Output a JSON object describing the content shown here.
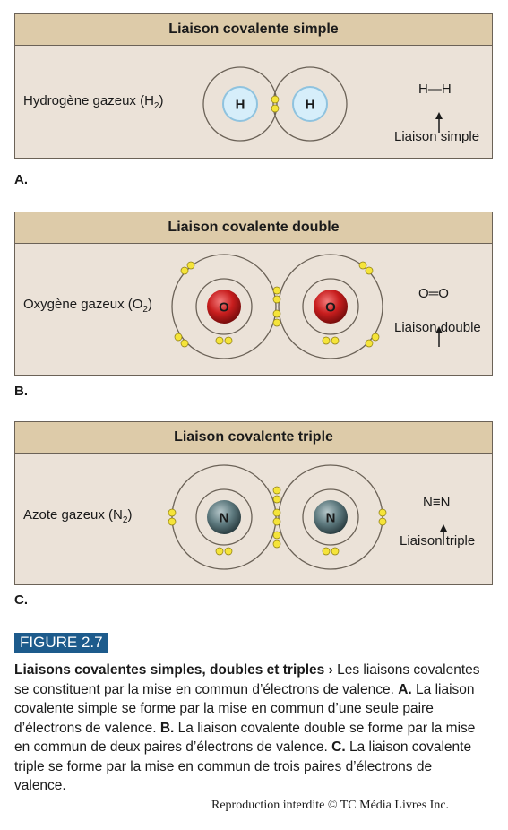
{
  "panels": [
    {
      "letter": "A.",
      "title": "Liaison covalente simple",
      "gas_prefix": "Hydrogène gazeux (H",
      "gas_sub": "2",
      "gas_suffix": ")",
      "atom_symbol": "H",
      "formula": "H—H",
      "bond_label": "Liaison simple",
      "atom_color": "#d6eefa"
    },
    {
      "letter": "B.",
      "title": "Liaison covalente double",
      "gas_prefix": "Oxygène gazeux (O",
      "gas_sub": "2",
      "gas_suffix": ")",
      "atom_symbol": "O",
      "formula": "O═O",
      "bond_label": "Liaison double",
      "atom_color": "#c81e1e"
    },
    {
      "letter": "C.",
      "title": "Liaison covalente triple",
      "gas_prefix": "Azote gazeux (N",
      "gas_sub": "2",
      "gas_suffix": ")",
      "atom_symbol": "N",
      "formula": "N≡N",
      "bond_label": "Liaison triple",
      "atom_color": "#4c6a70"
    }
  ],
  "figure": {
    "tag": "FIGURE 2.7",
    "caption_title": "Liaisons covalentes simples, doubles et triples",
    "caption_arrow": "›",
    "caption_intro": "Les liaisons covalentes se constituent par la mise en commun d’électrons de valence.",
    "a_label": "A.",
    "a_text": "La liaison covalente simple se forme par la mise en commun d’une seule paire d’électrons de valence.",
    "b_label": "B.",
    "b_text": "La liaison covalente double se forme par la mise en commun de deux paires d’électrons de valence.",
    "c_label": "C.",
    "c_text": "La liaison covalente triple se forme par la mise en commun de trois paires d’électrons de valence."
  },
  "copyright": "Reproduction interdite © TC Média Livres Inc.",
  "colors": {
    "panel_bg": "#ebe2d8",
    "panel_header": "#ddcba9",
    "electron": "#f5e43a",
    "orbit": "#6b6257",
    "figure_tag": "#1d5b8c"
  }
}
